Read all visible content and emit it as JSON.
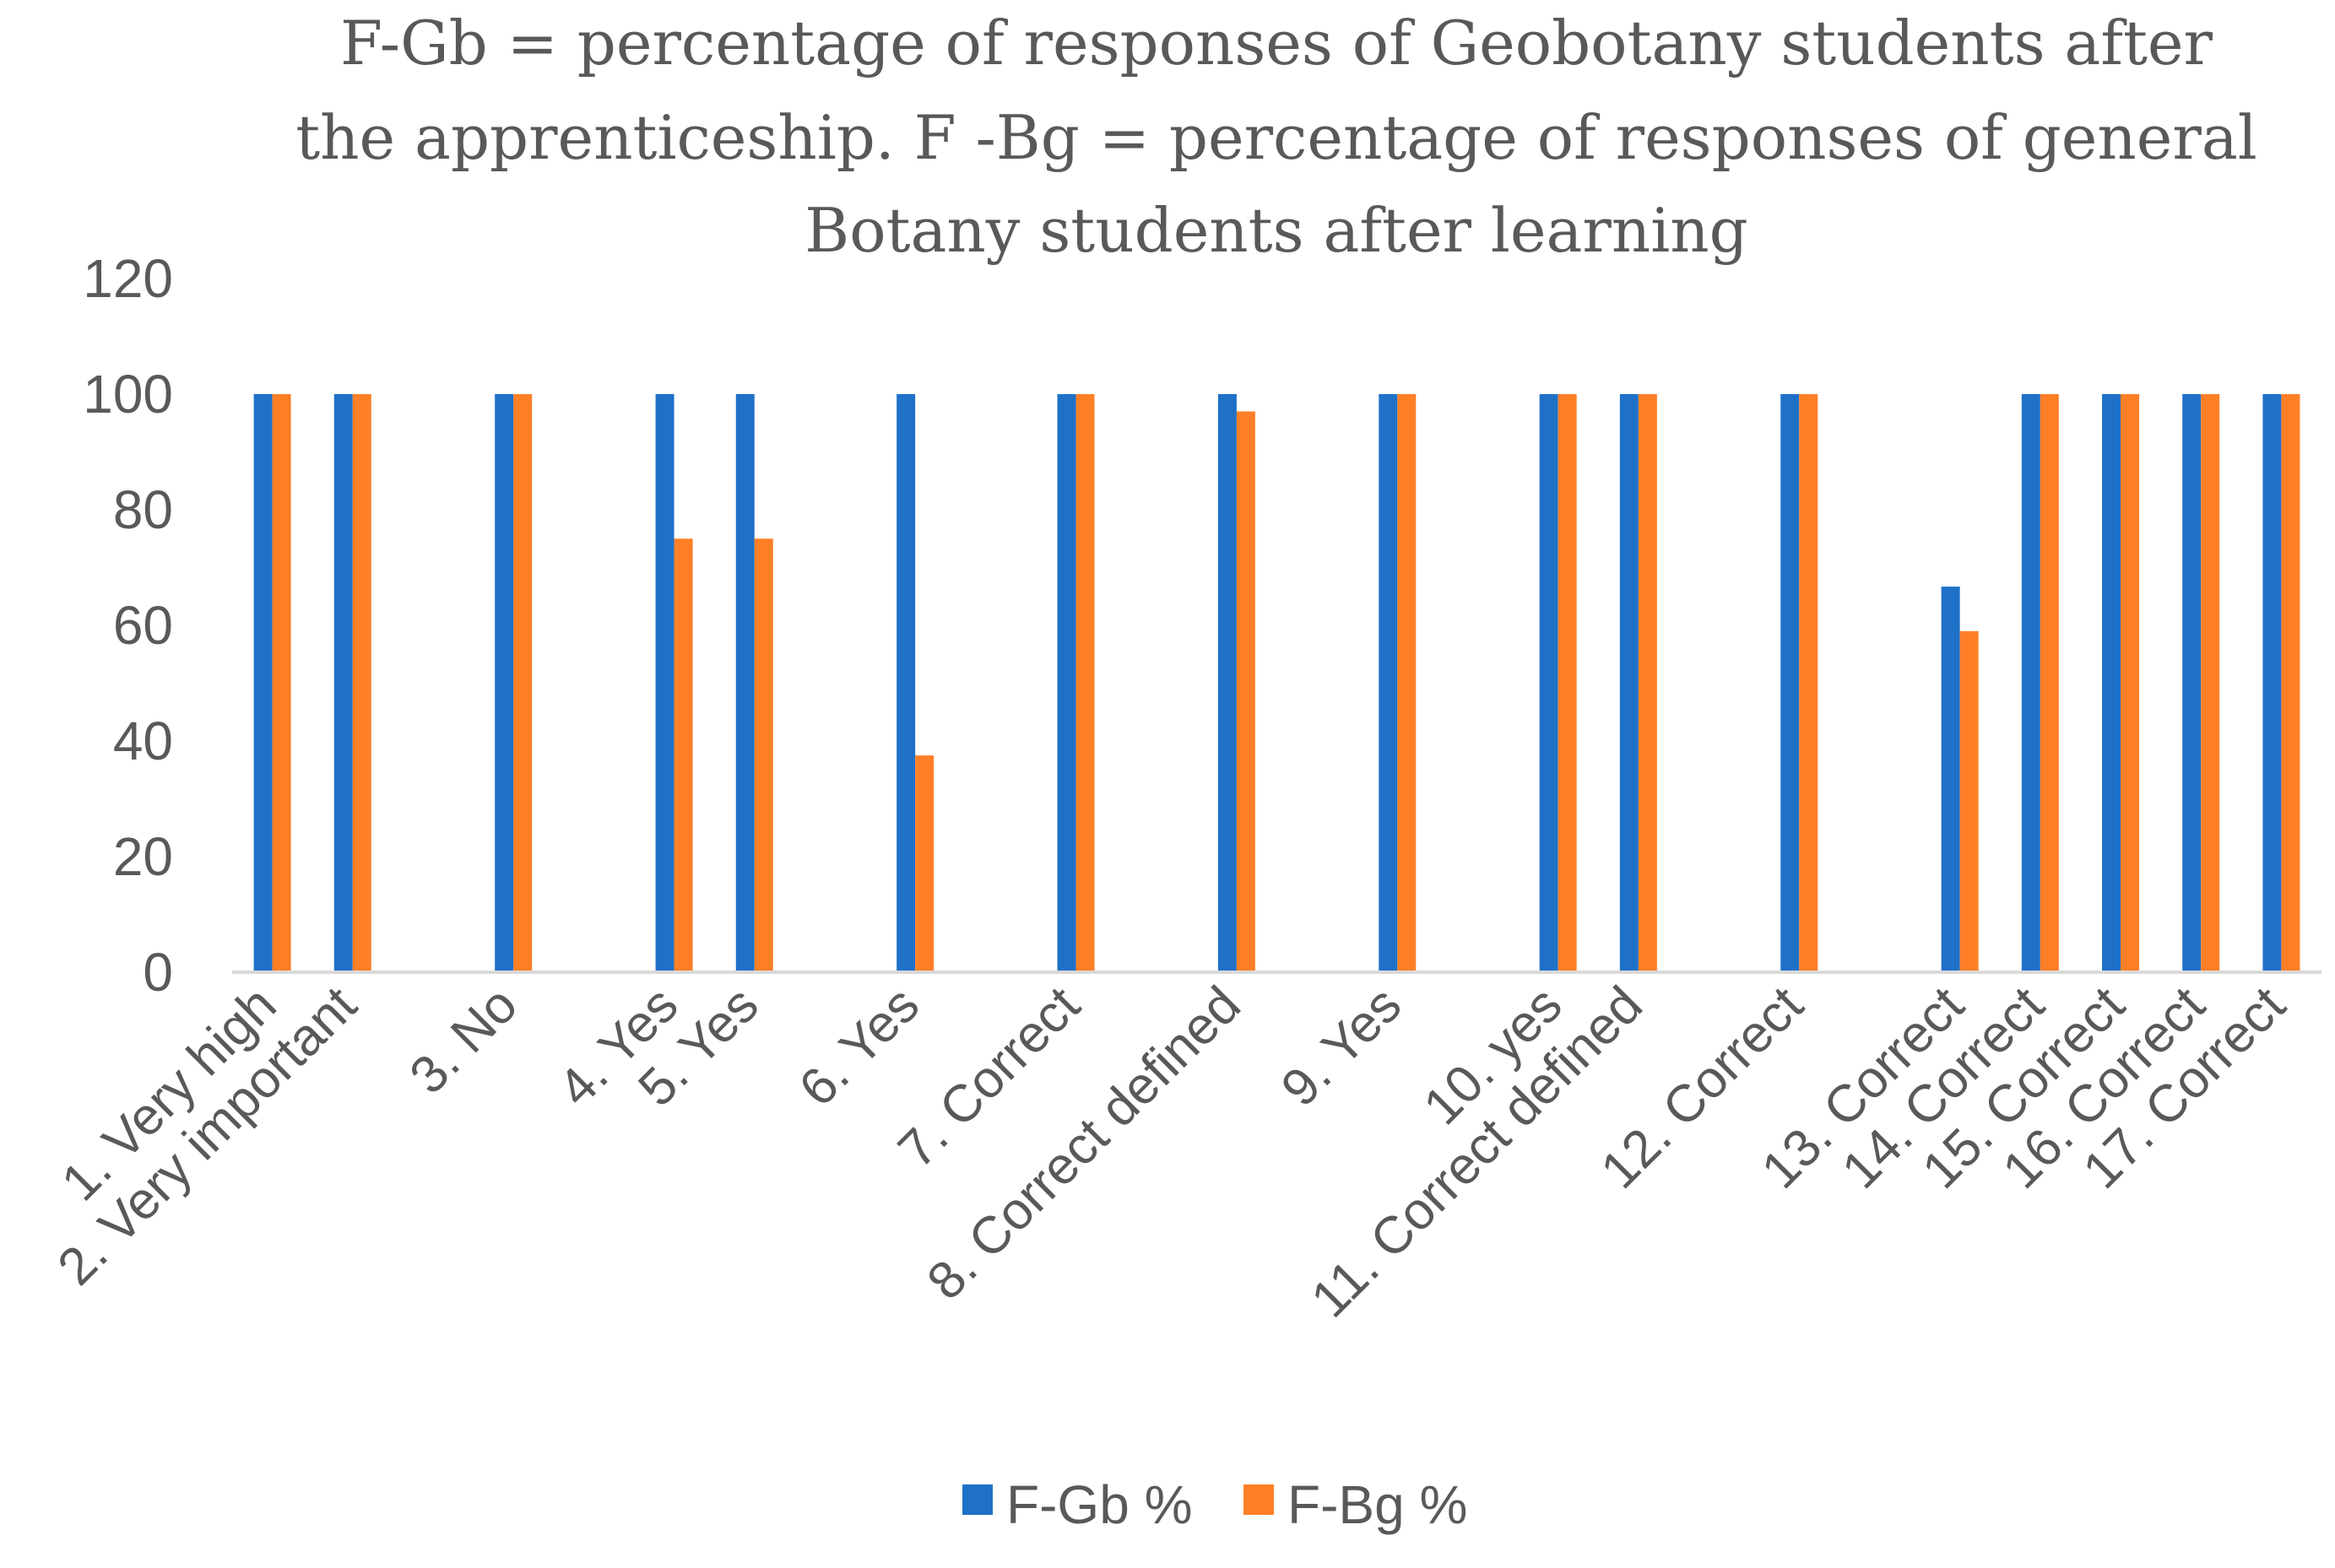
{
  "chart_data": {
    "type": "bar",
    "title_lines": [
      "F-Gb = percentage of responses of Geobotany students after",
      "the apprenticeship. F -Bg = percentage of responses of general",
      "Botany students after learning"
    ],
    "categories": [
      "1. Very high",
      "2. Very important",
      "3. No",
      "4. Yes",
      "5. Yes",
      "6. Yes",
      "7. Correct",
      "8. Correct defined",
      "9. Yes",
      "10. yes",
      "11. Correct defined",
      "12. Correct",
      "13. Correct",
      "14. Correct",
      "15. Correct",
      "16. Correct",
      "17. Correct"
    ],
    "category_slots": [
      0,
      1,
      3,
      5,
      6,
      8,
      10,
      12,
      14,
      16,
      17,
      19,
      21,
      22,
      23,
      24,
      25
    ],
    "slot_count": 26,
    "series": [
      {
        "name": "F-Gb %",
        "color": "#1F71C8",
        "values": [
          100,
          100,
          100,
          100,
          100,
          100,
          100,
          100,
          100,
          100,
          100,
          100,
          66.7,
          100,
          100,
          100,
          100
        ]
      },
      {
        "name": "F-Bg %",
        "color": "#FF7F27",
        "values": [
          100,
          100,
          100,
          75,
          75,
          37.5,
          100,
          97,
          100,
          100,
          100,
          100,
          59,
          100,
          100,
          100,
          100
        ]
      }
    ],
    "yticks": [
      0,
      20,
      40,
      60,
      80,
      100,
      120
    ],
    "ylim": [
      0,
      120
    ],
    "xlabel": "",
    "ylabel": "",
    "legend_position": "bottom",
    "grid": false
  }
}
